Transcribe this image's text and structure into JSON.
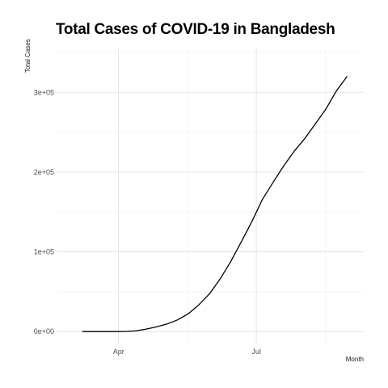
{
  "chart_data": {
    "type": "line",
    "title": "Total Cases of COVID-19 in Bangladesh",
    "xlabel": "Month",
    "ylabel": "Total Cases",
    "x_tick_labels": [
      "Apr",
      "Jul"
    ],
    "y_tick_labels": [
      "0e+00",
      "1e+05",
      "2e+05",
      "3e+05"
    ],
    "y_ticks": [
      0,
      100000,
      200000,
      300000
    ],
    "x_ticks": [
      "2020-04-01",
      "2020-07-01"
    ],
    "ylim": [
      -15000,
      355000
    ],
    "xlim": [
      "2020-02-20",
      "2020-09-10"
    ],
    "grid": true,
    "line_color": "#000000",
    "series": [
      {
        "x": [
          "2020-03-08",
          "2020-03-15",
          "2020-03-22",
          "2020-03-29",
          "2020-04-05",
          "2020-04-12",
          "2020-04-19",
          "2020-04-26",
          "2020-05-03",
          "2020-05-10",
          "2020-05-17",
          "2020-05-24",
          "2020-05-31",
          "2020-06-07",
          "2020-06-14",
          "2020-06-21",
          "2020-06-28",
          "2020-07-05",
          "2020-07-12",
          "2020-07-19",
          "2020-07-26",
          "2020-08-02",
          "2020-08-09",
          "2020-08-16",
          "2020-08-23",
          "2020-08-30"
        ],
        "values": [
          3,
          5,
          30,
          50,
          120,
          800,
          2900,
          5900,
          9500,
          14700,
          22300,
          33600,
          47200,
          65800,
          87600,
          112300,
          137800,
          165600,
          186900,
          207500,
          226200,
          242100,
          260500,
          279100,
          302100,
          320000
        ]
      }
    ]
  }
}
